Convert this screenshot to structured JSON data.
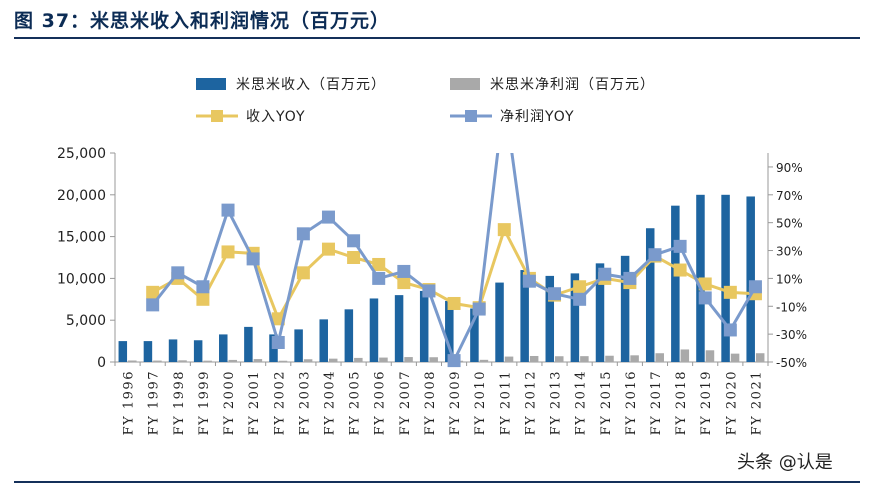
{
  "title": "图 37：米思米收入和利润情况（百万元）",
  "watermark": "头条 @认是",
  "colors": {
    "revenue": "#1d64a0",
    "net_profit": "#a9a9a9",
    "revenue_yoy": "#e8c760",
    "profit_yoy": "#7a9acc",
    "rule": "#14305a"
  },
  "chart_data": {
    "type": "bar",
    "categories": [
      "FY1996",
      "FY1997",
      "FY1998",
      "FY1999",
      "FY2000",
      "FY2001",
      "FY2002",
      "FY2003",
      "FY2004",
      "FY2005",
      "FY2006",
      "FY2007",
      "FY2008",
      "FY2009",
      "FY2010",
      "FY2011",
      "FY2012",
      "FY2013",
      "FY2014",
      "FY2015",
      "FY2016",
      "FY2017",
      "FY2018",
      "FY2019",
      "FY2020",
      "FY2021"
    ],
    "xtick_labels": [
      "FY 1996",
      "FY 1997",
      "FY 1998",
      "FY 1999",
      "FY 2000",
      "FY 2001",
      "FY 2002",
      "FY 2003",
      "FY 2004",
      "FY 2005",
      "FY 2006",
      "FY 2007",
      "FY 2008",
      "FY 2009",
      "FY 2010",
      "FY 2011",
      "FY 2012",
      "FY 2013",
      "FY 2014",
      "FY 2015",
      "FY 2016",
      "FY 2017",
      "FY 2018",
      "FY 2019",
      "FY 2020",
      "FY 2021"
    ],
    "left_axis": {
      "ylim": [
        0,
        25000
      ],
      "ticks": [
        "0",
        "5,000",
        "10,000",
        "15,000",
        "20,000",
        "25,000"
      ],
      "tick_values": [
        0,
        5000,
        10000,
        15000,
        20000,
        25000
      ]
    },
    "right_axis": {
      "ylim": [
        -50,
        100
      ],
      "ticks": [
        "-50%",
        "-30%",
        "-10%",
        "10%",
        "30%",
        "50%",
        "70%",
        "90%"
      ],
      "tick_values": [
        -50,
        -30,
        -10,
        10,
        30,
        50,
        70,
        90
      ]
    },
    "series": [
      {
        "name": "米思米收入（百万元）",
        "kind": "bar",
        "axis": "left",
        "values": [
          2500,
          2500,
          2700,
          2600,
          3300,
          4200,
          3300,
          3900,
          5100,
          6300,
          7600,
          8000,
          8500,
          7300,
          6400,
          9500,
          11000,
          10300,
          10600,
          11800,
          12700,
          16000,
          18700,
          20000,
          20000,
          19800
        ]
      },
      {
        "name": "米思米净利润（百万元）",
        "kind": "bar",
        "axis": "left",
        "values": [
          180,
          170,
          200,
          160,
          250,
          350,
          150,
          330,
          400,
          490,
          530,
          590,
          570,
          150,
          260,
          650,
          720,
          690,
          700,
          750,
          800,
          1050,
          1500,
          1400,
          1000,
          1050
        ]
      },
      {
        "name": "收入YOY",
        "kind": "line",
        "axis": "right",
        "values": [
          null,
          0,
          10,
          -5,
          29,
          28,
          -19,
          14,
          31,
          25,
          20,
          7,
          2,
          -8,
          -11,
          45,
          10,
          -2,
          4,
          10,
          7,
          26,
          16,
          6,
          0,
          -1
        ]
      },
      {
        "name": "净利润YOY",
        "kind": "line",
        "axis": "right",
        "values": [
          null,
          -9,
          14,
          4,
          59,
          24,
          -36,
          42,
          54,
          37,
          10,
          15,
          1,
          -49,
          -12,
          140,
          8,
          -1,
          -5,
          13,
          10,
          27,
          33,
          -4,
          -27,
          4
        ]
      }
    ],
    "legend_position": "top",
    "grid": false
  }
}
